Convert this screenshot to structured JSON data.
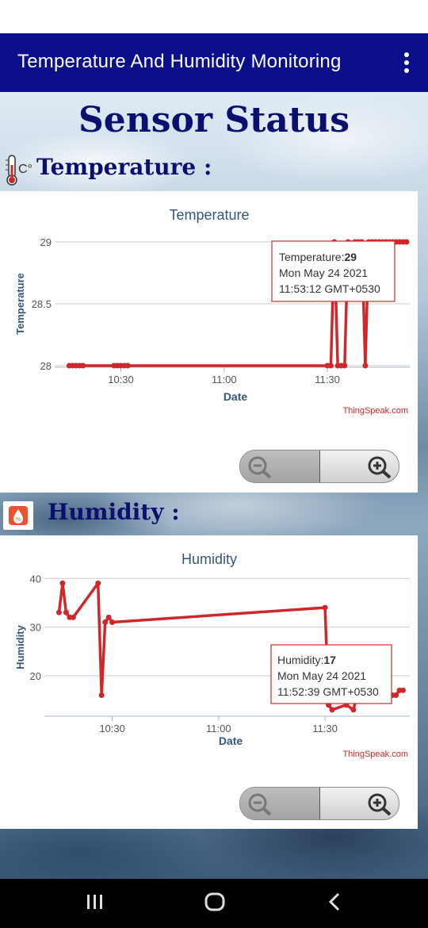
{
  "app": {
    "title": "Temperature And Humidity Monitoring",
    "menu_icon": "more-vert-icon"
  },
  "page": {
    "heading": "Sensor Status"
  },
  "sections": {
    "temperature": {
      "label": "Temperature :",
      "icon": "thermometer-celsius-icon",
      "icon_text": "C°"
    },
    "humidity": {
      "label": "Humidity :",
      "icon": "humidity-drop-icon",
      "icon_text": "%"
    }
  },
  "charts": {
    "temperature": {
      "title": "Temperature",
      "xlabel": "Date",
      "ylabel": "Temperature",
      "credit": "ThingSpeak.com",
      "tooltip": {
        "prefix": "Temperature:",
        "value": "29",
        "date": "Mon May 24 2021",
        "time": "11:53:12 GMT+0530"
      }
    },
    "humidity": {
      "title": "Humidity",
      "xlabel": "Date",
      "ylabel": "Humidity",
      "credit": "ThingSpeak.com",
      "tooltip": {
        "prefix": "Humidity:",
        "value": "17",
        "date": "Mon May 24 2021",
        "time": "11:52:39 GMT+0530"
      }
    }
  },
  "zoom": {
    "zoom_out_icon": "zoom-out-icon",
    "zoom_in_icon": "zoom-in-icon"
  },
  "nav": {
    "recents_icon": "recents-icon",
    "home_icon": "home-icon",
    "back_icon": "back-icon"
  },
  "colors": {
    "appbar": "#0b0f8a",
    "series": "#d0282a",
    "heading": "#0b0f70",
    "axis_text": "#33577b"
  },
  "chart_data": [
    {
      "type": "line",
      "title": "Temperature",
      "xlabel": "Date",
      "ylabel": "Temperature",
      "xticks": [
        "10:30",
        "11:00",
        "11:30"
      ],
      "yticks": [
        28,
        28.5,
        29
      ],
      "ylim": [
        28,
        29
      ],
      "x_minutes_range": [
        "10:14",
        "11:58"
      ],
      "series": [
        {
          "x": [
            "10:15",
            "10:16",
            "10:17",
            "10:18",
            "10:19",
            "10:28",
            "10:29",
            "10:30",
            "10:31",
            "10:32",
            "11:30",
            "11:31",
            "11:32",
            "11:33",
            "11:34",
            "11:35",
            "11:36",
            "11:38",
            "11:39",
            "11:40",
            "11:41",
            "11:42",
            "11:43",
            "11:44",
            "11:45",
            "11:46",
            "11:47",
            "11:48",
            "11:49",
            "11:50",
            "11:51",
            "11:52",
            "11:53"
          ],
          "values": [
            28,
            28,
            28,
            28,
            28,
            28,
            28,
            28,
            28,
            28,
            28,
            28,
            29,
            28,
            28,
            28,
            29,
            29,
            29,
            29,
            28,
            29,
            29,
            29,
            29,
            29,
            29,
            29,
            29,
            29,
            29,
            29,
            29
          ]
        }
      ]
    },
    {
      "type": "line",
      "title": "Humidity",
      "xlabel": "Date",
      "ylabel": "Humidity",
      "xticks": [
        "10:30",
        "11:00",
        "11:30"
      ],
      "yticks": [
        20,
        30,
        40
      ],
      "ylim": [
        12,
        42
      ],
      "series": [
        {
          "x": [
            "10:15",
            "10:16",
            "10:17",
            "10:18",
            "10:19",
            "10:26",
            "10:27",
            "10:28",
            "10:29",
            "10:30",
            "11:30",
            "11:31",
            "11:32",
            "11:36",
            "11:38",
            "11:39",
            "11:40",
            "11:41",
            "11:42",
            "11:43",
            "11:44",
            "11:45",
            "11:46",
            "11:47",
            "11:48",
            "11:49",
            "11:50",
            "11:51",
            "11:52"
          ],
          "values": [
            33,
            39,
            33,
            32,
            32,
            39,
            16,
            31,
            32,
            31,
            34,
            14,
            13,
            14,
            13,
            16,
            16,
            16,
            16,
            16,
            16,
            16,
            16,
            16,
            16,
            16,
            16,
            17,
            17
          ]
        }
      ]
    }
  ]
}
